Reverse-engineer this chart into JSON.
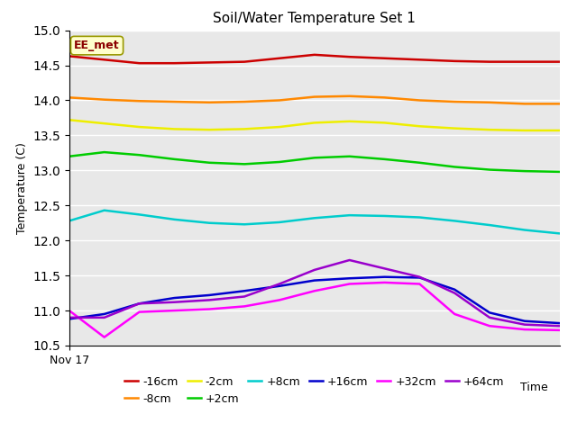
{
  "title": "Soil/Water Temperature Set 1",
  "xlabel": "Time",
  "ylabel": "Temperature (C)",
  "ylim": [
    10.5,
    15.0
  ],
  "annotation": "EE_met",
  "plot_bg_color": "#e8e8e8",
  "fig_bg_color": "#ffffff",
  "series_order": [
    "-16cm",
    "-8cm",
    "-2cm",
    "+2cm",
    "+8cm",
    "+16cm",
    "+32cm",
    "+64cm"
  ],
  "series": {
    "-16cm": {
      "color": "#cc0000",
      "points": [
        14.63,
        14.58,
        14.53,
        14.53,
        14.54,
        14.55,
        14.6,
        14.65,
        14.62,
        14.6,
        14.58,
        14.56,
        14.55,
        14.55,
        14.55
      ]
    },
    "-8cm": {
      "color": "#ff8800",
      "points": [
        14.04,
        14.01,
        13.99,
        13.98,
        13.97,
        13.98,
        14.0,
        14.05,
        14.06,
        14.04,
        14.0,
        13.98,
        13.97,
        13.95,
        13.95
      ]
    },
    "-2cm": {
      "color": "#eeee00",
      "points": [
        13.72,
        13.67,
        13.62,
        13.59,
        13.58,
        13.59,
        13.62,
        13.68,
        13.7,
        13.68,
        13.63,
        13.6,
        13.58,
        13.57,
        13.57
      ]
    },
    "+2cm": {
      "color": "#00cc00",
      "points": [
        13.2,
        13.26,
        13.22,
        13.16,
        13.11,
        13.09,
        13.12,
        13.18,
        13.2,
        13.16,
        13.11,
        13.05,
        13.01,
        12.99,
        12.98
      ]
    },
    "+8cm": {
      "color": "#00cccc",
      "points": [
        12.28,
        12.43,
        12.37,
        12.3,
        12.25,
        12.23,
        12.26,
        12.32,
        12.36,
        12.35,
        12.33,
        12.28,
        12.22,
        12.15,
        12.1
      ]
    },
    "+16cm": {
      "color": "#0000cc",
      "points": [
        10.88,
        10.95,
        11.1,
        11.18,
        11.22,
        11.28,
        11.35,
        11.43,
        11.46,
        11.48,
        11.47,
        11.3,
        10.97,
        10.85,
        10.82
      ]
    },
    "+32cm": {
      "color": "#ff00ff",
      "points": [
        11.0,
        10.62,
        10.98,
        11.0,
        11.02,
        11.06,
        11.15,
        11.28,
        11.38,
        11.4,
        11.38,
        10.95,
        10.78,
        10.73,
        10.72
      ]
    },
    "+64cm": {
      "color": "#9900cc",
      "points": [
        10.9,
        10.9,
        11.1,
        11.12,
        11.15,
        11.2,
        11.38,
        11.58,
        11.72,
        11.6,
        11.48,
        11.25,
        10.9,
        10.8,
        10.78
      ]
    }
  },
  "x_label_text": "Nov 17",
  "yticks": [
    10.5,
    11.0,
    11.5,
    12.0,
    12.5,
    13.0,
    13.5,
    14.0,
    14.5,
    15.0
  ]
}
